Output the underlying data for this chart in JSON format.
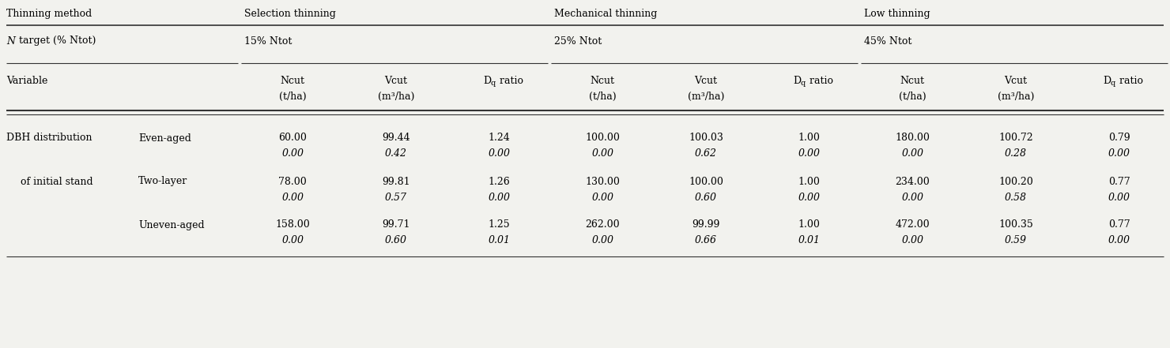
{
  "thinning_methods": [
    "Selection thinning",
    "Mechanical thinning",
    "Low thinning"
  ],
  "n_targets": [
    "15% Ntot",
    "25% Ntot",
    "45% Ntot"
  ],
  "sub_rows": [
    {
      "name": "Even-aged",
      "mean": [
        "60.00",
        "99.44",
        "1.24",
        "100.00",
        "100.03",
        "1.00",
        "180.00",
        "100.72",
        "0.79"
      ],
      "sd": [
        "0.00",
        "0.42",
        "0.00",
        "0.00",
        "0.62",
        "0.00",
        "0.00",
        "0.28",
        "0.00"
      ]
    },
    {
      "name": "Two-layer",
      "mean": [
        "78.00",
        "99.81",
        "1.26",
        "130.00",
        "100.00",
        "1.00",
        "234.00",
        "100.20",
        "0.77"
      ],
      "sd": [
        "0.00",
        "0.57",
        "0.00",
        "0.00",
        "0.60",
        "0.00",
        "0.00",
        "0.58",
        "0.00"
      ]
    },
    {
      "name": "Uneven-aged",
      "mean": [
        "158.00",
        "99.71",
        "1.25",
        "262.00",
        "99.99",
        "1.00",
        "472.00",
        "100.35",
        "0.77"
      ],
      "sd": [
        "0.00",
        "0.60",
        "0.01",
        "0.00",
        "0.66",
        "0.01",
        "0.00",
        "0.59",
        "0.00"
      ]
    }
  ],
  "bg_color": "#f2f2ee",
  "font_size": 9.0,
  "font_family": "DejaVu Serif"
}
